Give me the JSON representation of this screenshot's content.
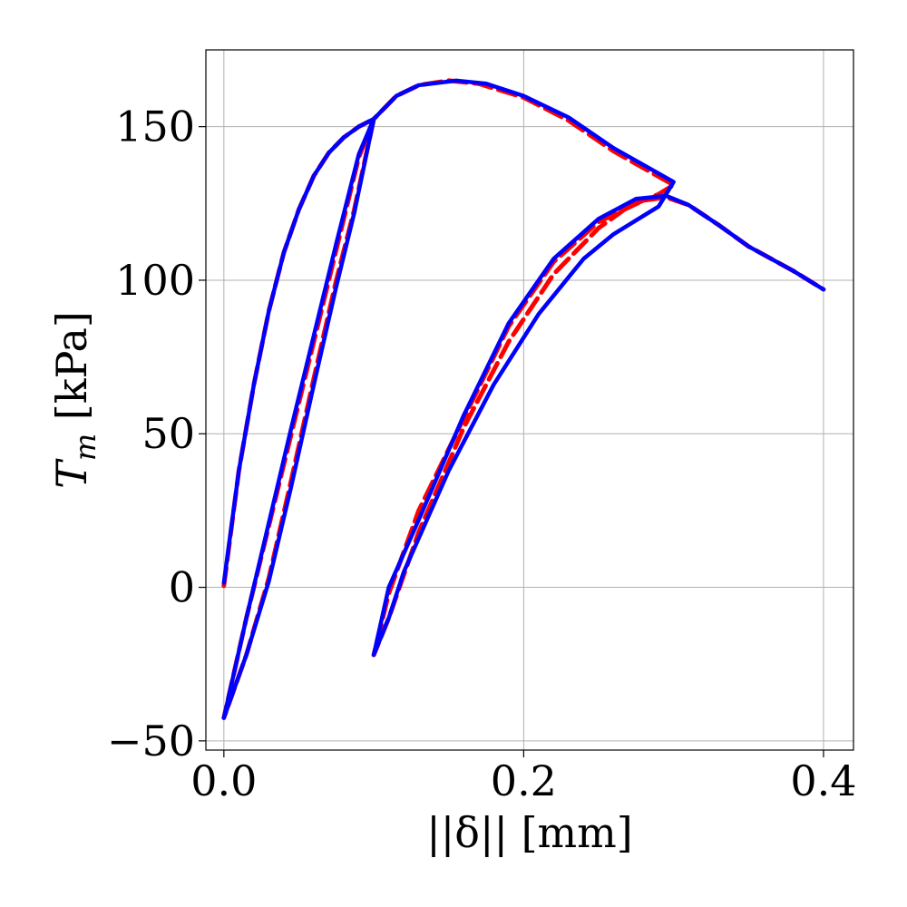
{
  "chart_data": {
    "type": "line",
    "title": "",
    "xlabel": "||δ|| [mm]",
    "ylabel_main": "T",
    "ylabel_sub": "m",
    "ylabel_unit": " [kPa]",
    "xlim": [
      -0.012,
      0.42
    ],
    "ylim": [
      -53,
      175
    ],
    "xticks": [
      0.0,
      0.2,
      0.4
    ],
    "xtick_labels": [
      "0.0",
      "0.2",
      "0.4"
    ],
    "yticks": [
      -50,
      0,
      50,
      100,
      150
    ],
    "ytick_labels": [
      "−50",
      "0",
      "50",
      "100",
      "150"
    ],
    "grid": true,
    "series": [
      {
        "color": "#ff0000",
        "style": "dashed",
        "points": [
          [
            0.0,
            0.5
          ],
          [
            0.01,
            38
          ],
          [
            0.02,
            66
          ],
          [
            0.03,
            90
          ],
          [
            0.04,
            109
          ],
          [
            0.05,
            123
          ],
          [
            0.06,
            134
          ],
          [
            0.07,
            141.5
          ],
          [
            0.08,
            146.5
          ],
          [
            0.09,
            150
          ],
          [
            0.1,
            152.5
          ],
          [
            0.087,
            123
          ],
          [
            0.075,
            100
          ],
          [
            0.06,
            68
          ],
          [
            0.045,
            35
          ],
          [
            0.03,
            3
          ],
          [
            0.015,
            -22
          ],
          [
            0.0,
            -42.5
          ],
          [
            0.015,
            -10
          ],
          [
            0.03,
            20
          ],
          [
            0.045,
            50
          ],
          [
            0.06,
            80
          ],
          [
            0.075,
            110
          ],
          [
            0.09,
            140
          ],
          [
            0.1,
            152.5
          ],
          [
            0.115,
            160
          ],
          [
            0.13,
            163.5
          ],
          [
            0.15,
            165
          ],
          [
            0.17,
            164
          ],
          [
            0.2,
            159.5
          ],
          [
            0.23,
            152
          ],
          [
            0.26,
            142
          ],
          [
            0.3,
            131
          ],
          [
            0.29,
            128
          ],
          [
            0.27,
            124
          ],
          [
            0.25,
            117
          ],
          [
            0.22,
            102
          ],
          [
            0.19,
            80
          ],
          [
            0.16,
            52
          ],
          [
            0.13,
            18
          ],
          [
            0.11,
            -10
          ],
          [
            0.1,
            -22
          ],
          [
            0.11,
            -2
          ],
          [
            0.13,
            25
          ],
          [
            0.16,
            55
          ],
          [
            0.19,
            85
          ],
          [
            0.22,
            106
          ],
          [
            0.25,
            119
          ],
          [
            0.28,
            126
          ],
          [
            0.295,
            127
          ],
          [
            0.31,
            124.5
          ],
          [
            0.33,
            118
          ],
          [
            0.35,
            111
          ],
          [
            0.38,
            103
          ],
          [
            0.4,
            97
          ]
        ]
      },
      {
        "color": "#0000ff",
        "style": "solid",
        "points": [
          [
            0.0,
            1.5
          ],
          [
            0.01,
            38
          ],
          [
            0.02,
            66
          ],
          [
            0.03,
            90
          ],
          [
            0.04,
            109
          ],
          [
            0.05,
            123
          ],
          [
            0.06,
            134
          ],
          [
            0.07,
            141.5
          ],
          [
            0.08,
            146.5
          ],
          [
            0.09,
            150
          ],
          [
            0.1,
            152.5
          ],
          [
            0.087,
            122
          ],
          [
            0.075,
            98
          ],
          [
            0.06,
            66
          ],
          [
            0.045,
            33
          ],
          [
            0.03,
            2
          ],
          [
            0.015,
            -22
          ],
          [
            0.0,
            -42.5
          ],
          [
            0.015,
            -10
          ],
          [
            0.03,
            21
          ],
          [
            0.045,
            52
          ],
          [
            0.06,
            82
          ],
          [
            0.075,
            112
          ],
          [
            0.09,
            141
          ],
          [
            0.1,
            152.5
          ],
          [
            0.115,
            160
          ],
          [
            0.13,
            163.5
          ],
          [
            0.155,
            165
          ],
          [
            0.175,
            164
          ],
          [
            0.2,
            160
          ],
          [
            0.23,
            153
          ],
          [
            0.26,
            143
          ],
          [
            0.3,
            132
          ],
          [
            0.29,
            124
          ],
          [
            0.28,
            121
          ],
          [
            0.26,
            115
          ],
          [
            0.24,
            107
          ],
          [
            0.21,
            89
          ],
          [
            0.18,
            66
          ],
          [
            0.15,
            38
          ],
          [
            0.12,
            5
          ],
          [
            0.11,
            -10
          ],
          [
            0.1,
            -22
          ],
          [
            0.11,
            0
          ],
          [
            0.13,
            22
          ],
          [
            0.16,
            56
          ],
          [
            0.19,
            86
          ],
          [
            0.22,
            107
          ],
          [
            0.25,
            120
          ],
          [
            0.275,
            126.5
          ],
          [
            0.295,
            127.5
          ],
          [
            0.31,
            124.5
          ],
          [
            0.33,
            118
          ],
          [
            0.35,
            111
          ],
          [
            0.38,
            103
          ],
          [
            0.4,
            97
          ]
        ]
      }
    ]
  }
}
